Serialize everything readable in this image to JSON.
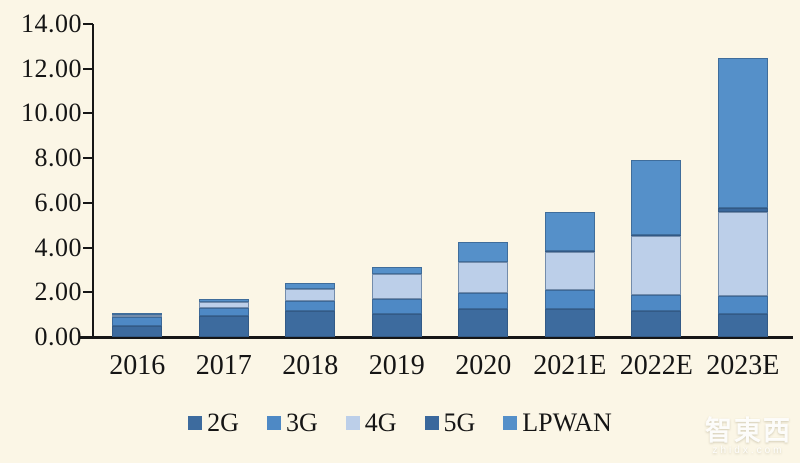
{
  "page": {
    "background_color": "#fbf6e6",
    "axis_color": "#161616",
    "text_color": "#151515"
  },
  "watermark": {
    "title": "智東西",
    "subtitle": "zhidx.com"
  },
  "chart_data": {
    "type": "bar",
    "stacked": true,
    "title": "",
    "xlabel": "",
    "ylabel": "",
    "categories": [
      "2016",
      "2017",
      "2018",
      "2019",
      "2020",
      "2021E",
      "2022E",
      "2023E"
    ],
    "series": [
      {
        "name": "2G",
        "color": "#3d6b9e",
        "values": [
          0.5,
          0.95,
          1.15,
          1.05,
          1.25,
          1.25,
          1.15,
          1.05
        ]
      },
      {
        "name": "3G",
        "color": "#4e89c5",
        "values": [
          0.4,
          0.35,
          0.45,
          0.65,
          0.7,
          0.85,
          0.75,
          0.8
        ]
      },
      {
        "name": "4G",
        "color": "#bccfe9",
        "values": [
          0.1,
          0.25,
          0.55,
          1.1,
          1.4,
          1.7,
          2.6,
          3.75
        ]
      },
      {
        "name": "5G",
        "color": "#3a689c",
        "values": [
          0.0,
          0.0,
          0.0,
          0.0,
          0.02,
          0.05,
          0.08,
          0.15
        ]
      },
      {
        "name": "LPWAN",
        "color": "#5590c9",
        "values": [
          0.05,
          0.15,
          0.25,
          0.35,
          0.88,
          1.75,
          3.32,
          6.75
        ]
      }
    ],
    "totals": [
      1.05,
      1.7,
      2.4,
      3.15,
      4.25,
      5.6,
      7.9,
      12.5
    ],
    "ylim": [
      0,
      14
    ],
    "ytick_step": 2,
    "ytick_labels": [
      "0.00",
      "2.00",
      "4.00",
      "6.00",
      "8.00",
      "10.00",
      "12.00",
      "14.00"
    ],
    "grid": false,
    "legend_position": "bottom"
  }
}
